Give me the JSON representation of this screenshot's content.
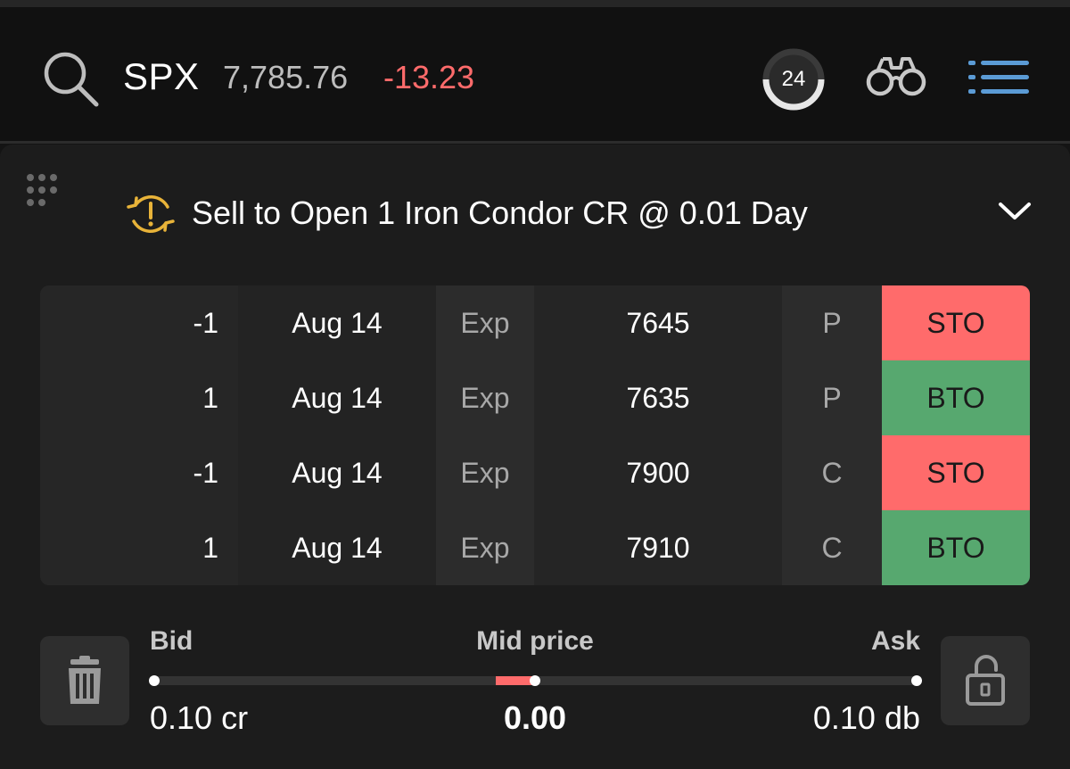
{
  "header": {
    "symbol": "SPX",
    "price": "7,785.76",
    "change": "-13.23",
    "change_color": "#ff6b6b",
    "timer_value": "24",
    "icons": [
      "search-icon",
      "binoculars-icon",
      "list-icon"
    ]
  },
  "order": {
    "title": "Sell to Open 1 Iron Condor CR @ 0.01 Day",
    "status_icon": "warning-refresh-icon",
    "legs": [
      {
        "qty": "-1",
        "date": "Aug 14",
        "exp": "Exp",
        "strike": "7645",
        "type": "P",
        "action": "STO"
      },
      {
        "qty": "1",
        "date": "Aug 14",
        "exp": "Exp",
        "strike": "7635",
        "type": "P",
        "action": "BTO"
      },
      {
        "qty": "-1",
        "date": "Aug 14",
        "exp": "Exp",
        "strike": "7900",
        "type": "C",
        "action": "STO"
      },
      {
        "qty": "1",
        "date": "Aug 14",
        "exp": "Exp",
        "strike": "7910",
        "type": "C",
        "action": "BTO"
      }
    ],
    "colors": {
      "sto": "#ff6b6b",
      "bto": "#57a86f",
      "accent": "#e8b339"
    }
  },
  "pricing": {
    "bid_label": "Bid",
    "mid_label": "Mid price",
    "ask_label": "Ask",
    "bid_value": "0.10 cr",
    "mid_value": "0.00",
    "ask_value": "0.10 db",
    "slider_position": 0.5
  }
}
